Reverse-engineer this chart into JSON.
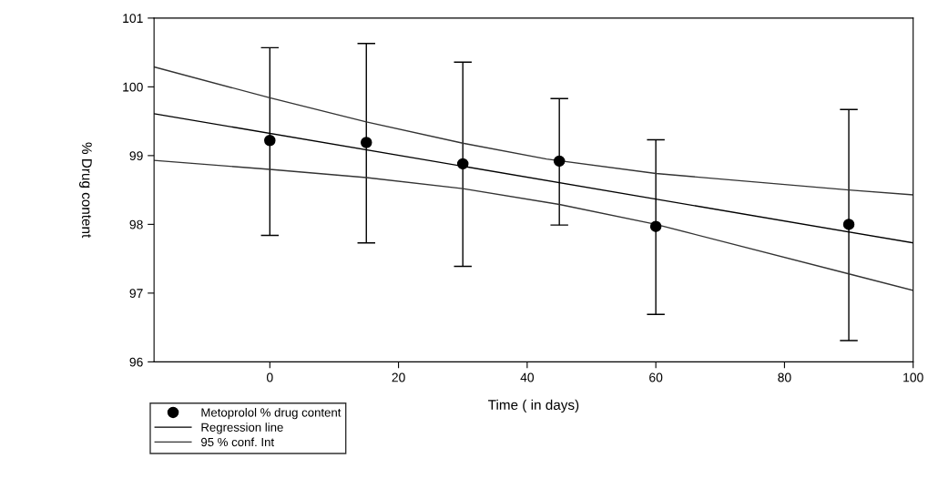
{
  "chart_data": {
    "type": "scatter",
    "xlabel": "Time ( in days)",
    "ylabel": "% Drug content",
    "xlim": [
      -18,
      100
    ],
    "xticks": [
      0,
      20,
      40,
      60,
      80,
      100
    ],
    "ylim": [
      96,
      101
    ],
    "yticks": [
      96,
      97,
      98,
      99,
      100,
      101
    ],
    "grid": false,
    "legend": "bottom left",
    "series": [
      {
        "name": "Metoprolol % drug content",
        "marker": "circle",
        "color": "#000000",
        "x": [
          0,
          15,
          30,
          45,
          60,
          90
        ],
        "values": [
          99.22,
          99.19,
          98.88,
          98.92,
          97.97,
          98.0
        ],
        "errors": [
          [
            97.84,
            100.57
          ],
          [
            97.73,
            100.63
          ],
          [
            97.39,
            100.36
          ],
          [
            97.99,
            99.83
          ],
          [
            96.69,
            99.23
          ],
          [
            96.31,
            99.67
          ]
        ]
      },
      {
        "name": "Regression line",
        "type": "line",
        "color": "#000000",
        "line_style": "solid",
        "x": [
          -18,
          100
        ],
        "values": [
          99.61,
          97.73
        ]
      },
      {
        "name": "95 % conf. Int",
        "type": "line",
        "color": "#333333",
        "line_style": "solid",
        "x": [
          -18,
          0,
          15,
          30,
          43,
          60,
          90,
          100
        ],
        "values": [
          100.29,
          99.84,
          99.49,
          99.18,
          98.95,
          98.74,
          98.5,
          98.43
        ]
      },
      {
        "type": "line",
        "color": "#333333",
        "line_style": "solid",
        "x": [
          -18,
          0,
          15,
          30,
          45,
          60,
          90,
          100
        ],
        "values": [
          98.93,
          98.8,
          98.68,
          98.52,
          98.29,
          98.0,
          97.28,
          97.04
        ]
      }
    ]
  }
}
